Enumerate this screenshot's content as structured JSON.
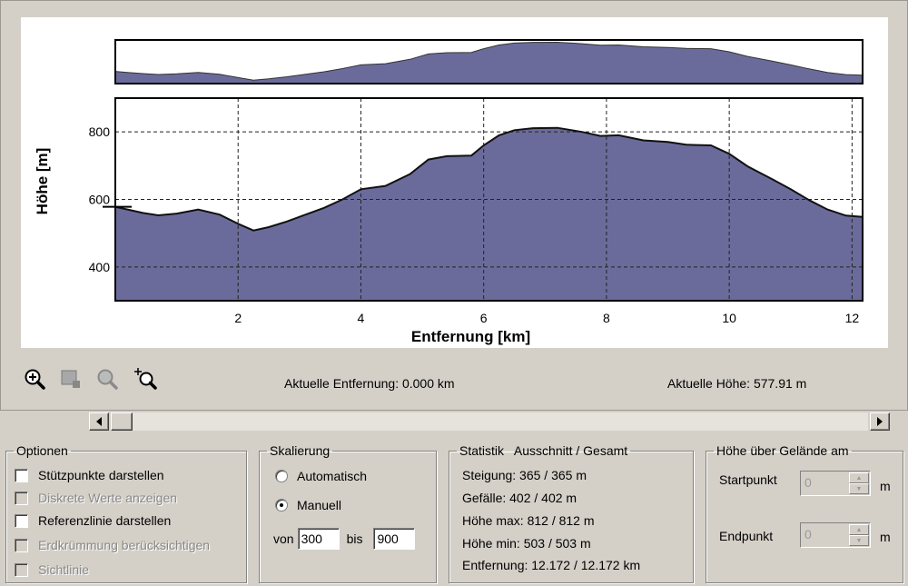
{
  "chart_data": {
    "type": "area",
    "xlabel": "Entfernung [km]",
    "ylabel": "Höhe [m]",
    "xlim": [
      0,
      12.172
    ],
    "ylim": [
      300,
      900
    ],
    "x_ticks": [
      2,
      4,
      6,
      8,
      10,
      12
    ],
    "y_ticks": [
      400,
      600,
      800
    ],
    "grid": true,
    "fill_color": "#6b6b9b",
    "line_color": "#111111",
    "series": [
      {
        "x": [
          0,
          0.2,
          0.45,
          0.7,
          1.0,
          1.35,
          1.7,
          2.0,
          2.25,
          2.5,
          2.8,
          3.1,
          3.4,
          3.7,
          4.0,
          4.4,
          4.8,
          5.1,
          5.4,
          5.8,
          6.0,
          6.25,
          6.5,
          6.8,
          7.2,
          7.6,
          7.9,
          8.2,
          8.6,
          9.0,
          9.3,
          9.7,
          10.0,
          10.3,
          10.7,
          11.0,
          11.3,
          11.6,
          11.9,
          12.172
        ],
        "y": [
          578,
          570,
          560,
          553,
          558,
          570,
          555,
          528,
          508,
          518,
          535,
          555,
          575,
          600,
          630,
          640,
          675,
          718,
          728,
          730,
          760,
          790,
          805,
          811,
          812,
          800,
          788,
          790,
          775,
          770,
          762,
          760,
          735,
          698,
          660,
          630,
          598,
          570,
          552,
          548
        ]
      }
    ]
  },
  "toolbar": {
    "zoom_in_icon": "zoom-in-icon",
    "zoom_out_icon": "zoom-out-icon",
    "zoom_prev_icon": "zoom-previous-icon",
    "zoom_full_icon": "zoom-extent-icon"
  },
  "readouts": {
    "distance": "Aktuelle Entfernung: 0.000 km",
    "height": "Aktuelle Höhe: 577.91 m"
  },
  "options": {
    "legend": "Optionen",
    "items": [
      {
        "label": "Stützpunkte darstellen",
        "checked": false,
        "enabled": true
      },
      {
        "label": "Diskrete Werte anzeigen",
        "checked": false,
        "enabled": false
      },
      {
        "label": "Referenzlinie darstellen",
        "checked": false,
        "enabled": true
      },
      {
        "label": "Erdkrümmung berücksichtigen",
        "checked": false,
        "enabled": false
      },
      {
        "label": "Sichtlinie",
        "checked": false,
        "enabled": false
      }
    ]
  },
  "scaling": {
    "legend": "Skalierung",
    "automatic_label": "Automatisch",
    "manual_label": "Manuell",
    "selected": "manual",
    "from_label": "von",
    "from_value": "300",
    "to_label": "bis",
    "to_value": "900"
  },
  "statistics": {
    "legend": "Statistik   Ausschnitt / Gesamt",
    "rows": [
      "Steigung: 365 / 365 m",
      "Gefälle: 402 / 402 m",
      "Höhe max: 812 / 812 m",
      "Höhe min: 503 / 503 m",
      "Entfernung: 12.172 / 12.172 km"
    ]
  },
  "height_above_ground": {
    "legend": "Höhe über Gelände am",
    "start_label": "Startpunkt",
    "start_value": "0",
    "end_label": "Endpunkt",
    "end_value": "0",
    "unit": "m"
  }
}
